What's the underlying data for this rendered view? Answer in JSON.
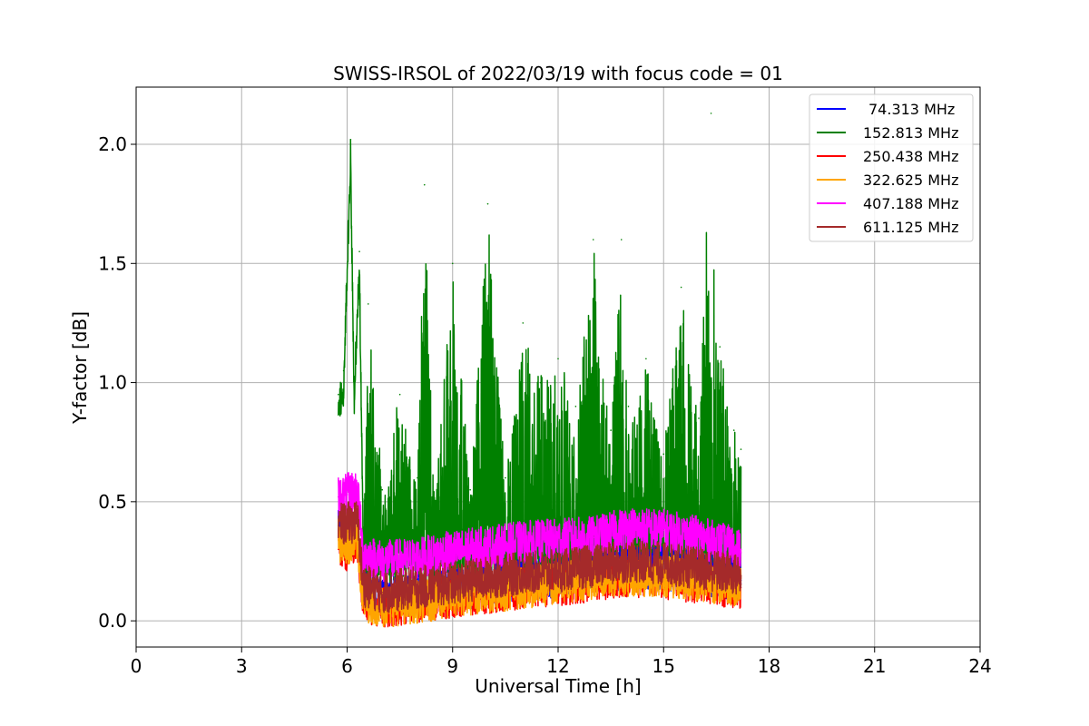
{
  "chart_data": {
    "type": "line",
    "title": "SWISS-IRSOL of 2022/03/19 with focus code = 01",
    "xlabel": "Universal Time [h]",
    "ylabel": "Y-factor [dB]",
    "xlim": [
      0,
      24
    ],
    "ylim": [
      -0.11,
      2.24
    ],
    "xticks": [
      0,
      3,
      6,
      9,
      12,
      15,
      18,
      21,
      24
    ],
    "xtick_labels": [
      "0",
      "3",
      "6",
      "9",
      "12",
      "15",
      "18",
      "21",
      "24"
    ],
    "yticks": [
      0.0,
      0.5,
      1.0,
      1.5,
      2.0
    ],
    "ytick_labels": [
      "0.0",
      "0.5",
      "1.0",
      "1.5",
      "2.0"
    ],
    "grid": true,
    "legend_position": "top-right",
    "series": [
      {
        "name": "74.313 MHz",
        "color": "#0000ff",
        "x": [
          5.75,
          6.0,
          6.3,
          6.45,
          7.0,
          8.0,
          9.0,
          10.0,
          11.0,
          12.0,
          13.0,
          14.0,
          15.0,
          16.0,
          17.2
        ],
        "y": [
          0.38,
          0.36,
          0.34,
          0.12,
          0.1,
          0.11,
          0.13,
          0.15,
          0.17,
          0.19,
          0.2,
          0.22,
          0.22,
          0.2,
          0.17
        ]
      },
      {
        "name": "152.813 MHz",
        "color": "#008000",
        "x": [
          5.75,
          5.9,
          6.1,
          6.2,
          6.35,
          6.45,
          6.6,
          7.0,
          7.5,
          8.0,
          8.2,
          8.5,
          9.0,
          9.5,
          10.0,
          10.5,
          11.0,
          11.5,
          12.0,
          12.5,
          13.0,
          13.5,
          13.8,
          14.0,
          14.5,
          15.0,
          15.5,
          16.0,
          16.35,
          16.6,
          17.0,
          17.2
        ],
        "y": [
          0.95,
          1.05,
          2.02,
          1.0,
          1.55,
          0.5,
          1.33,
          0.55,
          0.95,
          0.6,
          1.83,
          0.5,
          1.5,
          0.55,
          1.75,
          0.6,
          1.25,
          1.0,
          1.1,
          0.9,
          1.6,
          0.8,
          1.6,
          0.9,
          1.1,
          0.7,
          1.4,
          0.85,
          2.13,
          1.15,
          0.8,
          0.72
        ]
      },
      {
        "name": "250.438 MHz",
        "color": "#ff0000",
        "x": [
          5.75,
          6.0,
          6.3,
          6.45,
          7.0,
          8.0,
          9.0,
          10.0,
          11.0,
          12.0,
          13.0,
          14.0,
          15.0,
          16.0,
          17.2
        ],
        "y": [
          0.3,
          0.3,
          0.32,
          0.08,
          0.06,
          0.08,
          0.1,
          0.12,
          0.14,
          0.15,
          0.17,
          0.19,
          0.18,
          0.16,
          0.14
        ]
      },
      {
        "name": "322.625 MHz",
        "color": "#ffa500",
        "x": [
          5.75,
          6.0,
          6.3,
          6.45,
          7.0,
          8.0,
          9.0,
          10.0,
          11.0,
          12.0,
          13.0,
          14.0,
          15.0,
          16.0,
          17.2
        ],
        "y": [
          0.34,
          0.32,
          0.33,
          0.09,
          0.06,
          0.08,
          0.1,
          0.12,
          0.14,
          0.16,
          0.18,
          0.19,
          0.19,
          0.17,
          0.15
        ]
      },
      {
        "name": "407.188 MHz",
        "color": "#ff00ff",
        "x": [
          5.75,
          6.0,
          6.3,
          6.45,
          7.0,
          8.0,
          9.0,
          10.0,
          11.0,
          12.0,
          13.0,
          14.0,
          15.0,
          16.0,
          17.2
        ],
        "y": [
          0.52,
          0.53,
          0.55,
          0.28,
          0.25,
          0.26,
          0.29,
          0.31,
          0.33,
          0.34,
          0.35,
          0.39,
          0.38,
          0.35,
          0.3
        ]
      },
      {
        "name": "611.125 MHz",
        "color": "#a52a2a",
        "x": [
          5.75,
          6.0,
          6.3,
          6.45,
          7.0,
          8.0,
          9.0,
          10.0,
          11.0,
          12.0,
          13.0,
          14.0,
          15.0,
          16.0,
          17.2
        ],
        "y": [
          0.4,
          0.41,
          0.42,
          0.15,
          0.12,
          0.14,
          0.16,
          0.18,
          0.2,
          0.21,
          0.23,
          0.25,
          0.24,
          0.22,
          0.19
        ]
      }
    ]
  }
}
